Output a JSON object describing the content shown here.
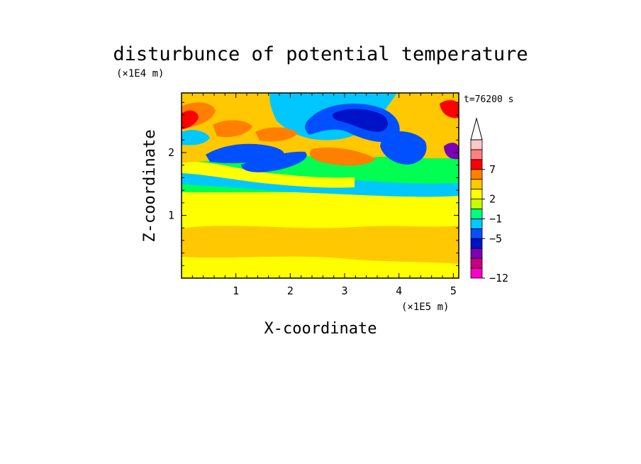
{
  "chart_data": {
    "type": "heatmap",
    "title": "disturbunce of potential temperature",
    "xlabel": "X-coordinate",
    "ylabel": "Z-coordinate",
    "x_unit": "(×1E5 m)",
    "y_unit": "(×1E4 m)",
    "time_label": "t=76200 s",
    "xlim": [
      0,
      5.1
    ],
    "ylim": [
      0,
      2.95
    ],
    "x_ticks": [
      "1",
      "2",
      "3",
      "4",
      "5"
    ],
    "y_ticks": [
      "1",
      "2"
    ],
    "x_tick_values": [
      1,
      2,
      3,
      4,
      5
    ],
    "y_tick_values": [
      1,
      2
    ],
    "colorbar": {
      "levels": [
        -12,
        -5,
        -1,
        2,
        7
      ],
      "level_labels": [
        "−12",
        "−5",
        "−1",
        "2",
        "7"
      ],
      "extend": "max",
      "colors_bottom_to_top": [
        "#ff00c8",
        "#c8007f",
        "#7d00b4",
        "#0012c8",
        "#0050ff",
        "#00c8ff",
        "#00ff80",
        "#c8ff00",
        "#ffff00",
        "#ffc800",
        "#ff8000",
        "#ff0000",
        "#ff8080",
        "#ffc8c8"
      ]
    },
    "field_colors": {
      "neg_strong": "#0012c8",
      "neg_mid": "#0050ff",
      "neg_weak": "#00c8ff",
      "near_zero": "#00ff50",
      "pos_weak": "#ffff00",
      "pos_mid": "#ffc800",
      "pos_strong": "#ff8000",
      "pos_max": "#ff0000",
      "extreme_neg": "#7d00b4"
    }
  }
}
